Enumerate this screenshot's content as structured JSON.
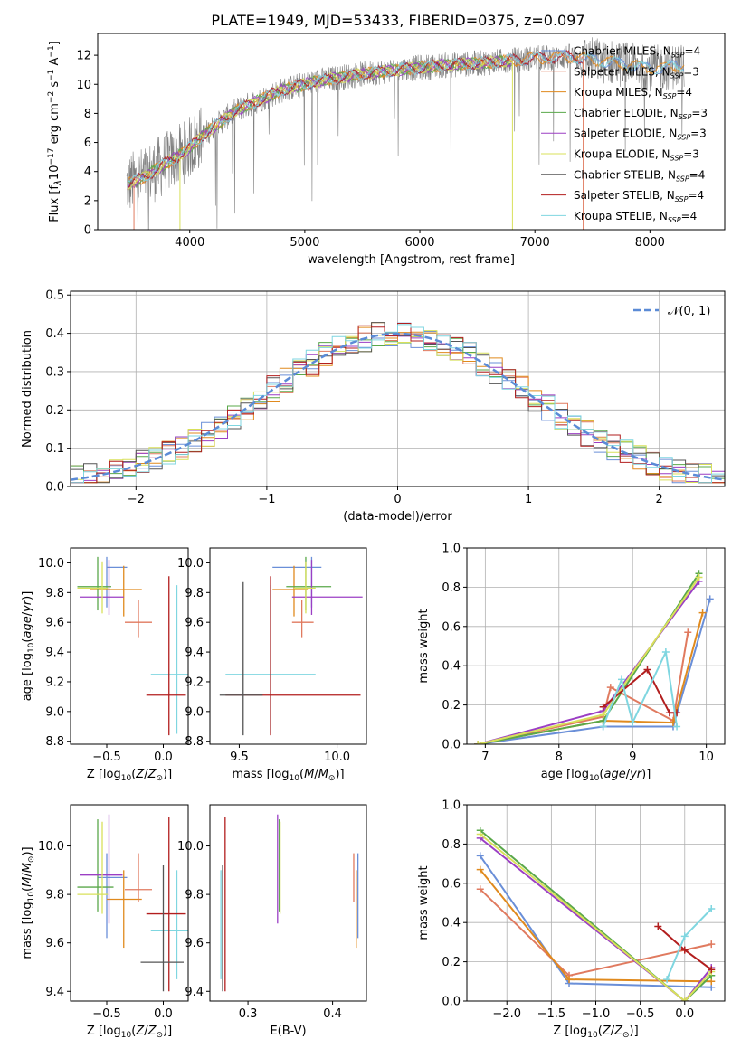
{
  "figure_title": "PLATE=1949, MJD=53433, FIBERID=0375, z=0.097",
  "colors": {
    "Chabrier MILES": "#6a8fd8",
    "Salpeter MILES": "#e07a5f",
    "Kroupa MILES": "#e08a1e",
    "Chabrier ELODIE": "#5aa84a",
    "Salpeter ELODIE": "#9b3fc4",
    "Kroupa ELODIE": "#d8e05a",
    "Chabrier STELIB": "#555555",
    "Salpeter STELIB": "#b21e1e",
    "Kroupa STELIB": "#7fd6e0",
    "data": "#808080"
  },
  "chart_data": [
    {
      "type": "line",
      "title": "PLATE=1949, MJD=53433, FIBERID=0375, z=0.097",
      "xlabel": "wavelength [Angstrom, rest frame]",
      "ylabel": "Flux [f_λ 10^-17 erg cm^-2 s^-1 A^-1]",
      "xlim": [
        3200,
        8650
      ],
      "ylim": [
        0,
        13.5
      ],
      "xticks": [
        "4000",
        "5000",
        "6000",
        "7000",
        "8000"
      ],
      "yticks": [
        "0",
        "2",
        "4",
        "6",
        "8",
        "10",
        "12"
      ],
      "legend_position": "right",
      "legend": [
        "Chabrier MILES, N_SSP=4",
        "Salpeter MILES, N_SSP=3",
        "Kroupa MILES, N_SSP=4",
        "Chabrier ELODIE, N_SSP=3",
        "Salpeter ELODIE, N_SSP=3",
        "Kroupa ELODIE, N_SSP=3",
        "Chabrier STELIB, N_SSP=4",
        "Salpeter STELIB, N_SSP=4",
        "Kroupa STELIB, N_SSP=4"
      ],
      "continuum_anchor_points": {
        "wavelength": [
          3450,
          3600,
          3800,
          3950,
          4100,
          4400,
          4800,
          5100,
          5400,
          5800,
          6200,
          6600,
          7000,
          7300,
          7600,
          8000,
          8300
        ],
        "flux": [
          3.1,
          3.6,
          4.6,
          5.3,
          6.4,
          8.2,
          9.6,
          10.2,
          10.6,
          11.0,
          11.3,
          11.5,
          11.8,
          11.9,
          11.6,
          11.1,
          11.3
        ]
      }
    },
    {
      "type": "line",
      "xlabel": "(data-model)/error",
      "ylabel": "Normed distribution",
      "xlim": [
        -2.5,
        2.5
      ],
      "ylim": [
        0,
        0.51
      ],
      "xticks": [
        "−2",
        "−1",
        "0",
        "1",
        "2"
      ],
      "yticks": [
        "0.0",
        "0.1",
        "0.2",
        "0.3",
        "0.4",
        "0.5"
      ],
      "legend": [
        "𝒩(0, 1)"
      ],
      "legend_position": "top-right",
      "histogram_bin_width": 0.1,
      "series": [
        {
          "name": "𝒩(0, 1)",
          "function": "standard normal pdf"
        }
      ]
    },
    {
      "type": "scatter",
      "xlabel": "Z [log10(Z/Z☉)]",
      "ylabel": "age  [log10(age/yr)]",
      "xlim": [
        -0.82,
        0.22
      ],
      "ylim": [
        8.78,
        10.1
      ],
      "xticks": [
        "−0.5",
        "0.0"
      ],
      "yticks": [
        "8.8",
        "9.0",
        "9.2",
        "9.4",
        "9.6",
        "9.8",
        "10.0"
      ],
      "points": [
        {
          "model": "Chabrier MILES",
          "x": -0.5,
          "y": 9.97,
          "xerr": [
            0.0,
            0.18
          ],
          "yerr": [
            0.27,
            0.07
          ]
        },
        {
          "model": "Kroupa MILES",
          "x": -0.35,
          "y": 9.82,
          "xerr": [
            0.3,
            0.16
          ],
          "yerr": [
            0.18,
            0.16
          ]
        },
        {
          "model": "Chabrier ELODIE",
          "x": -0.58,
          "y": 9.84,
          "xerr": [
            0.18,
            0.12
          ],
          "yerr": [
            0.16,
            0.2
          ]
        },
        {
          "model": "Salpeter ELODIE",
          "x": -0.48,
          "y": 9.77,
          "xerr": [
            0.26,
            0.13
          ],
          "yerr": [
            0.12,
            0.25
          ]
        },
        {
          "model": "Kroupa ELODIE",
          "x": -0.54,
          "y": 9.83,
          "xerr": [
            0.22,
            0.05
          ],
          "yerr": [
            0.17,
            0.18
          ]
        },
        {
          "model": "Salpeter MILES",
          "x": -0.22,
          "y": 9.6,
          "xerr": [
            0.12,
            0.12
          ],
          "yerr": [
            0.1,
            0.15
          ]
        },
        {
          "model": "Kroupa STELIB",
          "x": 0.12,
          "y": 9.25,
          "xerr": [
            0.23,
            0.11
          ],
          "yerr": [
            0.4,
            0.6
          ]
        },
        {
          "model": "Salpeter STELIB",
          "x": 0.05,
          "y": 9.11,
          "xerr": [
            0.2,
            0.15
          ],
          "yerr": [
            0.27,
            0.8
          ]
        }
      ]
    },
    {
      "type": "scatter",
      "xlabel": "mass [log10(M/M☉)]",
      "ylabel": "",
      "xlim": [
        9.35,
        10.15
      ],
      "ylim": [
        8.78,
        10.1
      ],
      "xticks": [
        "9.5",
        "10.0"
      ],
      "yticks": [
        "8.8",
        "9.0",
        "9.2",
        "9.4",
        "9.6",
        "9.8",
        "10.0"
      ],
      "points": [
        {
          "model": "Chabrier MILES",
          "x": 9.87,
          "y": 9.97,
          "xerr": [
            0.2,
            0.05
          ],
          "yerr": [
            0.27,
            0.07
          ]
        },
        {
          "model": "Kroupa MILES",
          "x": 9.78,
          "y": 9.82,
          "xerr": [
            0.11,
            0.07
          ],
          "yerr": [
            0.18,
            0.16
          ]
        },
        {
          "model": "Chabrier ELODIE",
          "x": 9.84,
          "y": 9.84,
          "xerr": [
            0.1,
            0.13
          ],
          "yerr": [
            0.16,
            0.2
          ]
        },
        {
          "model": "Salpeter ELODIE",
          "x": 9.87,
          "y": 9.77,
          "xerr": [
            0.1,
            0.26
          ],
          "yerr": [
            0.12,
            0.25
          ]
        },
        {
          "model": "Kroupa ELODIE",
          "x": 9.84,
          "y": 9.83,
          "xerr": [
            0.06,
            0.05
          ],
          "yerr": [
            0.17,
            0.18
          ]
        },
        {
          "model": "Salpeter MILES",
          "x": 9.82,
          "y": 9.6,
          "xerr": [
            0.05,
            0.06
          ],
          "yerr": [
            0.1,
            0.15
          ]
        },
        {
          "model": "Kroupa STELIB",
          "x": 9.66,
          "y": 9.25,
          "xerr": [
            0.23,
            0.23
          ],
          "yerr": [
            0.4,
            0.6
          ]
        },
        {
          "model": "Salpeter STELIB",
          "x": 9.66,
          "y": 9.11,
          "xerr": [
            0.23,
            0.46
          ],
          "yerr": [
            0.27,
            0.8
          ]
        },
        {
          "model": "Chabrier STELIB",
          "x": 9.52,
          "y": 9.11,
          "xerr": [
            0.12,
            0.1
          ],
          "yerr": [
            0.27,
            0.76
          ]
        }
      ]
    },
    {
      "type": "line",
      "xlabel": "age  [log10(age/yr)]",
      "ylabel": "mass weight",
      "xlim": [
        6.75,
        10.25
      ],
      "ylim": [
        0,
        1.0
      ],
      "xticks": [
        "7",
        "8",
        "9",
        "10"
      ],
      "yticks": [
        "0.0",
        "0.2",
        "0.4",
        "0.6",
        "0.8",
        "1.0"
      ],
      "grid": true,
      "series": [
        {
          "name": "Chabrier MILES",
          "x": [
            6.9,
            8.6,
            9.55,
            10.05
          ],
          "y": [
            0.0,
            0.09,
            0.09,
            0.74
          ]
        },
        {
          "name": "Salpeter MILES",
          "x": [
            6.9,
            8.6,
            8.7,
            9.55,
            9.75
          ],
          "y": [
            0.0,
            0.14,
            0.29,
            0.12,
            0.57
          ]
        },
        {
          "name": "Kroupa MILES",
          "x": [
            6.9,
            8.6,
            9.55,
            9.95
          ],
          "y": [
            0.0,
            0.12,
            0.11,
            0.67
          ]
        },
        {
          "name": "Chabrier ELODIE",
          "x": [
            6.9,
            8.6,
            9.9
          ],
          "y": [
            0.0,
            0.12,
            0.87
          ]
        },
        {
          "name": "Salpeter ELODIE",
          "x": [
            6.9,
            8.6,
            9.9
          ],
          "y": [
            0.0,
            0.17,
            0.83
          ]
        },
        {
          "name": "Kroupa ELODIE",
          "x": [
            6.9,
            8.6,
            9.9
          ],
          "y": [
            0.0,
            0.15,
            0.85
          ]
        },
        {
          "name": "Salpeter STELIB",
          "x": [
            8.6,
            9.2,
            9.5,
            9.6
          ],
          "y": [
            0.19,
            0.38,
            0.16,
            0.16
          ]
        },
        {
          "name": "Kroupa STELIB",
          "x": [
            8.6,
            8.85,
            9.0,
            9.45,
            9.6
          ],
          "y": [
            0.09,
            0.33,
            0.11,
            0.47,
            0.09
          ]
        }
      ]
    },
    {
      "type": "scatter",
      "xlabel": "Z [log10(Z/Z☉)]",
      "ylabel": "mass [log10(M/M☉)]",
      "xlim": [
        -0.82,
        0.22
      ],
      "ylim": [
        9.36,
        10.17
      ],
      "xticks": [
        "−0.5",
        "0.0"
      ],
      "yticks": [
        "9.4",
        "9.6",
        "9.8",
        "10.0"
      ],
      "points": [
        {
          "model": "Chabrier MILES",
          "x": -0.5,
          "y": 9.87,
          "xerr": [
            0.08,
            0.18
          ],
          "yerr": [
            0.25,
            0.1
          ]
        },
        {
          "model": "Kroupa MILES",
          "x": -0.35,
          "y": 9.78,
          "xerr": [
            0.15,
            0.16
          ],
          "yerr": [
            0.2,
            0.12
          ]
        },
        {
          "model": "Chabrier ELODIE",
          "x": -0.58,
          "y": 9.83,
          "xerr": [
            0.18,
            0.14
          ],
          "yerr": [
            0.1,
            0.28
          ]
        },
        {
          "model": "Salpeter ELODIE",
          "x": -0.48,
          "y": 9.88,
          "xerr": [
            0.26,
            0.12
          ],
          "yerr": [
            0.2,
            0.25
          ]
        },
        {
          "model": "Kroupa ELODIE",
          "x": -0.54,
          "y": 9.8,
          "xerr": [
            0.22,
            0.05
          ],
          "yerr": [
            0.08,
            0.3
          ]
        },
        {
          "model": "Salpeter MILES",
          "x": -0.22,
          "y": 9.82,
          "xerr": [
            0.12,
            0.12
          ],
          "yerr": [
            0.05,
            0.15
          ]
        },
        {
          "model": "Kroupa STELIB",
          "x": 0.12,
          "y": 9.65,
          "xerr": [
            0.23,
            0.11
          ],
          "yerr": [
            0.2,
            0.25
          ]
        },
        {
          "model": "Salpeter STELIB",
          "x": 0.05,
          "y": 9.72,
          "xerr": [
            0.2,
            0.15
          ],
          "yerr": [
            0.32,
            0.4
          ]
        },
        {
          "model": "Chabrier STELIB",
          "x": 0.0,
          "y": 9.52,
          "xerr": [
            0.2,
            0.18
          ],
          "yerr": [
            0.12,
            0.4
          ]
        }
      ]
    },
    {
      "type": "scatter",
      "xlabel": "E(B-V)",
      "ylabel": "",
      "xlim": [
        0.255,
        0.44
      ],
      "ylim": [
        9.36,
        10.17
      ],
      "xticks": [
        "0.3",
        "0.4"
      ],
      "yticks": [
        "9.4",
        "9.6",
        "9.8",
        "10.0"
      ],
      "points": [
        {
          "model": "Kroupa STELIB",
          "x": 0.268,
          "y": 9.65,
          "yerr": [
            0.2,
            0.25
          ]
        },
        {
          "model": "Chabrier STELIB",
          "x": 0.27,
          "y": 9.52,
          "yerr": [
            0.12,
            0.4
          ]
        },
        {
          "model": "Salpeter STELIB",
          "x": 0.273,
          "y": 9.72,
          "yerr": [
            0.32,
            0.4
          ]
        },
        {
          "model": "Salpeter ELODIE",
          "x": 0.335,
          "y": 9.88,
          "yerr": [
            0.2,
            0.25
          ]
        },
        {
          "model": "Chabrier ELODIE",
          "x": 0.337,
          "y": 9.83,
          "yerr": [
            0.1,
            0.28
          ]
        },
        {
          "model": "Kroupa ELODIE",
          "x": 0.338,
          "y": 9.8,
          "yerr": [
            0.08,
            0.3
          ]
        },
        {
          "model": "Salpeter MILES",
          "x": 0.425,
          "y": 9.82,
          "yerr": [
            0.05,
            0.15
          ]
        },
        {
          "model": "Kroupa MILES",
          "x": 0.428,
          "y": 9.78,
          "yerr": [
            0.2,
            0.12
          ]
        },
        {
          "model": "Chabrier MILES",
          "x": 0.43,
          "y": 9.87,
          "yerr": [
            0.25,
            0.1
          ]
        }
      ]
    },
    {
      "type": "line",
      "xlabel": "Z [log10(Z/Z☉)]",
      "ylabel": "mass weight",
      "xlim": [
        -2.45,
        0.45
      ],
      "ylim": [
        0,
        1.0
      ],
      "xticks": [
        "−2.0",
        "−1.5",
        "−1.0",
        "−0.5",
        "0.0"
      ],
      "yticks": [
        "0.0",
        "0.2",
        "0.4",
        "0.6",
        "0.8",
        "1.0"
      ],
      "grid": true,
      "series": [
        {
          "name": "Chabrier MILES",
          "x": [
            -2.3,
            -1.3,
            0.3
          ],
          "y": [
            0.74,
            0.09,
            0.07
          ]
        },
        {
          "name": "Salpeter MILES",
          "x": [
            -2.3,
            -1.3,
            0.3
          ],
          "y": [
            0.57,
            0.13,
            0.29
          ]
        },
        {
          "name": "Kroupa MILES",
          "x": [
            -2.3,
            -1.3,
            0.3
          ],
          "y": [
            0.67,
            0.11,
            0.1
          ]
        },
        {
          "name": "Chabrier ELODIE",
          "x": [
            -2.3,
            0.0,
            0.3
          ],
          "y": [
            0.87,
            0.0,
            0.13
          ]
        },
        {
          "name": "Salpeter ELODIE",
          "x": [
            -2.3,
            0.0,
            0.3
          ],
          "y": [
            0.83,
            0.0,
            0.17
          ]
        },
        {
          "name": "Kroupa ELODIE",
          "x": [
            -2.3,
            0.0,
            0.3
          ],
          "y": [
            0.85,
            0.0,
            0.15
          ]
        },
        {
          "name": "Salpeter STELIB",
          "x": [
            -0.3,
            0.0,
            0.3
          ],
          "y": [
            0.38,
            0.26,
            0.16
          ]
        },
        {
          "name": "Kroupa STELIB",
          "x": [
            -0.2,
            0.0,
            0.3
          ],
          "y": [
            0.11,
            0.33,
            0.47
          ]
        }
      ]
    }
  ]
}
